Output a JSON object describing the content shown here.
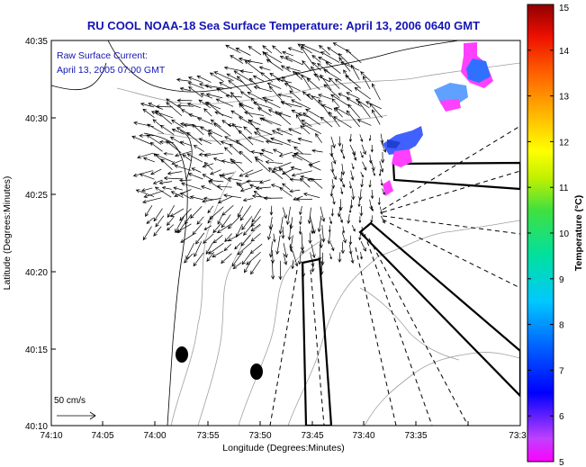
{
  "chart_data": {
    "type": "map",
    "title": "RU COOL  NOAA-18  Sea Surface Temperature:  April 13, 2006 0640 GMT",
    "xlabel": "Longitude (Degrees:Minutes)",
    "ylabel": "Latitude (Degrees:Minutes)",
    "x_ticks": [
      "74:10",
      "74:05",
      "74:00",
      "73:55",
      "73:50",
      "73:45",
      "73:40",
      "73:35",
      "73:3"
    ],
    "y_ticks": [
      "40:35",
      "40:30",
      "40:25",
      "40:20",
      "40:15",
      "40:10"
    ],
    "xlim_minutes_west": [
      -10,
      30
    ],
    "ylim_minutes_north": [
      10,
      35
    ],
    "current_label_1": "Raw Surface Current:",
    "current_label_2": "April 13, 2005 07:00 GMT",
    "scale_label": "50 cm/s",
    "colorbar": {
      "label": "Temperature (°C)",
      "min": 5,
      "max": 15,
      "ticks": [
        "5",
        "6",
        "7",
        "8",
        "9",
        "10",
        "11",
        "12",
        "13",
        "14",
        "15"
      ]
    },
    "sst_patches": [
      {
        "lon": 73.6,
        "lat": 40.57,
        "temp": 5.3
      },
      {
        "lon": 73.63,
        "lat": 40.55,
        "temp": 5.8
      },
      {
        "lon": 73.66,
        "lat": 40.53,
        "temp": 6.0
      },
      {
        "lon": 73.68,
        "lat": 40.52,
        "temp": 6.3
      },
      {
        "lon": 73.675,
        "lat": 40.46,
        "temp": 6.1
      },
      {
        "lon": 73.69,
        "lat": 40.45,
        "temp": 5.2
      },
      {
        "lon": 73.71,
        "lat": 40.44,
        "temp": 5.6
      },
      {
        "lon": 73.72,
        "lat": 40.43,
        "temp": 5.1
      }
    ],
    "stations": [
      {
        "lon": 73.98,
        "lat": 40.24
      },
      {
        "lon": 73.95,
        "lat": 40.23
      }
    ]
  }
}
